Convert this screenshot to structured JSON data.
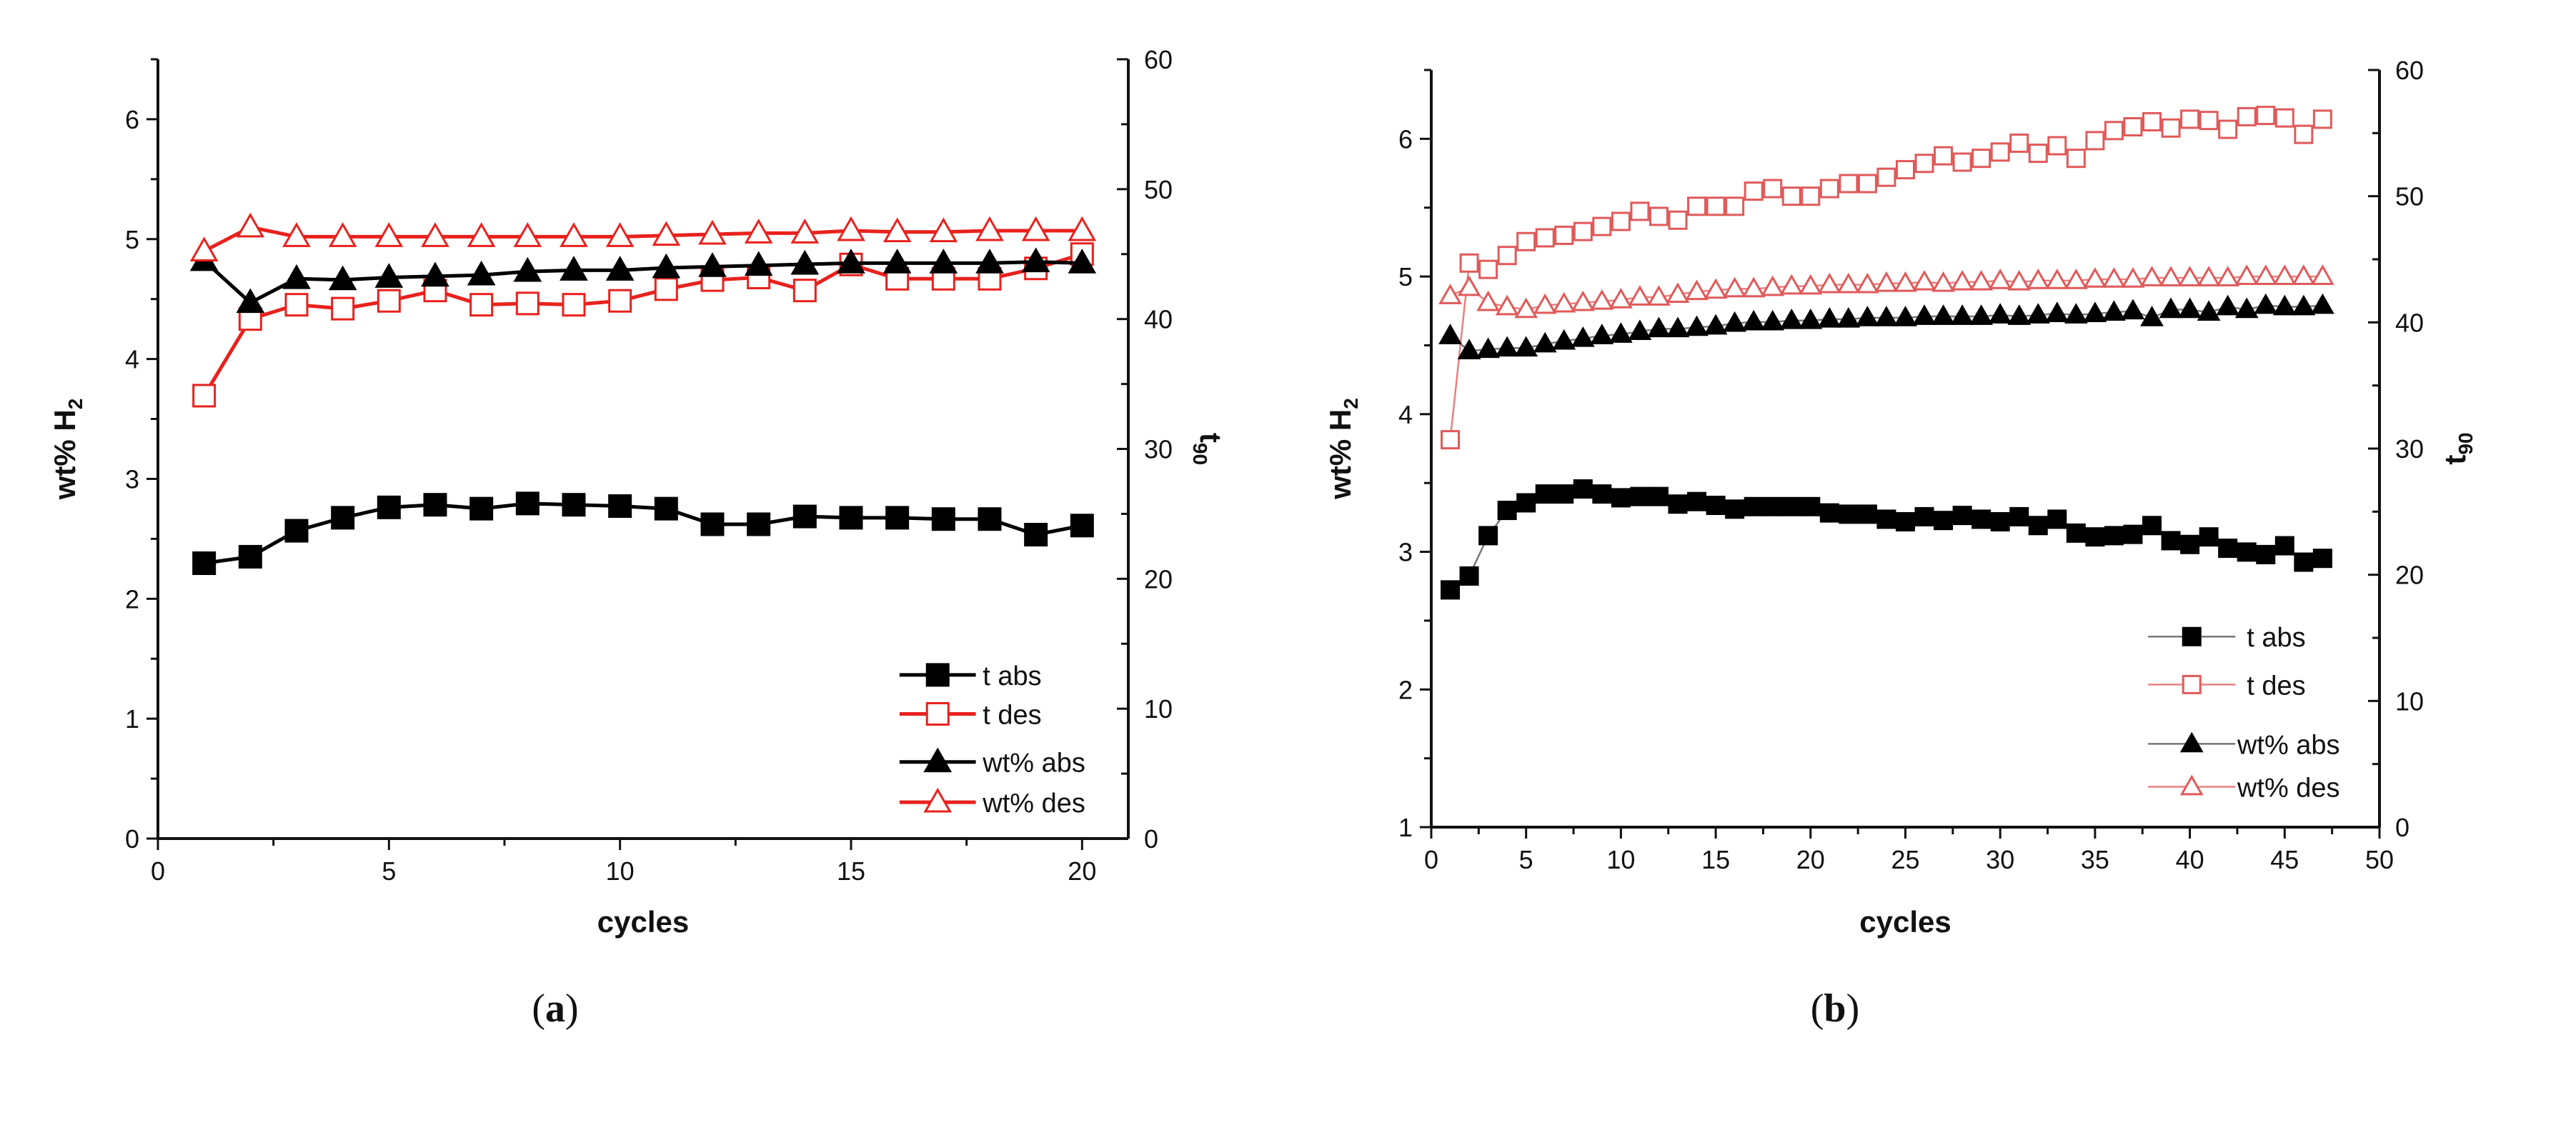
{
  "chart_data": [
    {
      "type": "line",
      "caption": "a",
      "xlabel": "cycles",
      "ylabel": "wt% H",
      "ylabel_sub": "2",
      "y2label": "t",
      "y2label_sub": "90",
      "xlim": [
        0,
        21
      ],
      "ylim": [
        0,
        6.5
      ],
      "y2lim": [
        0,
        60
      ],
      "xticks": [
        0,
        5,
        10,
        15,
        20
      ],
      "yticks": [
        0,
        1,
        2,
        3,
        4,
        5,
        6
      ],
      "y2ticks": [
        0,
        10,
        20,
        30,
        40,
        50,
        60
      ],
      "legend_position": "bottom-right",
      "x": [
        1,
        2,
        3,
        4,
        5,
        6,
        7,
        8,
        9,
        10,
        11,
        12,
        13,
        14,
        15,
        16,
        17,
        18,
        19,
        20
      ],
      "series": [
        {
          "name": "t abs",
          "axis": "right",
          "marker": "square-filled",
          "color": "#000000",
          "values": [
            21.2,
            21.7,
            23.7,
            24.7,
            25.5,
            25.7,
            25.4,
            25.8,
            25.7,
            25.6,
            25.4,
            24.2,
            24.2,
            24.8,
            24.7,
            24.7,
            24.6,
            24.6,
            23.4,
            24.1
          ]
        },
        {
          "name": "t des",
          "axis": "right",
          "marker": "square-open",
          "color": "#e8211d",
          "values": [
            34.1,
            40.0,
            41.1,
            40.8,
            41.4,
            42.2,
            41.1,
            41.2,
            41.1,
            41.4,
            42.3,
            43.0,
            43.2,
            42.2,
            44.2,
            43.1,
            43.1,
            43.1,
            43.9,
            45.0
          ]
        },
        {
          "name": "wt% abs",
          "axis": "left",
          "marker": "triangle-filled",
          "color": "#000000",
          "values": [
            4.82,
            4.47,
            4.67,
            4.66,
            4.68,
            4.69,
            4.7,
            4.73,
            4.74,
            4.74,
            4.76,
            4.77,
            4.78,
            4.79,
            4.8,
            4.8,
            4.8,
            4.8,
            4.81,
            4.8
          ]
        },
        {
          "name": "wt% des",
          "axis": "left",
          "marker": "triangle-open",
          "color": "#e8211d",
          "values": [
            4.9,
            5.1,
            5.02,
            5.02,
            5.02,
            5.02,
            5.02,
            5.02,
            5.02,
            5.02,
            5.03,
            5.04,
            5.05,
            5.05,
            5.07,
            5.06,
            5.06,
            5.07,
            5.07,
            5.07
          ]
        }
      ]
    },
    {
      "type": "scatter",
      "caption": "b",
      "xlabel": "cycles",
      "ylabel": "wt% H",
      "ylabel_sub": "2",
      "y2label": "t",
      "y2label_sub": "90",
      "xlim": [
        0,
        50
      ],
      "ylim": [
        1,
        6.5
      ],
      "y2lim": [
        0,
        60
      ],
      "xticks": [
        0,
        5,
        10,
        15,
        20,
        25,
        30,
        35,
        40,
        45,
        50
      ],
      "yticks": [
        1,
        2,
        3,
        4,
        5,
        6
      ],
      "y2ticks": [
        0,
        10,
        20,
        30,
        40,
        50,
        60
      ],
      "legend_position": "bottom-right",
      "x": [
        1,
        2,
        3,
        4,
        5,
        6,
        7,
        8,
        9,
        10,
        11,
        12,
        13,
        14,
        15,
        16,
        17,
        18,
        19,
        20,
        21,
        22,
        23,
        24,
        25,
        26,
        27,
        28,
        29,
        30,
        31,
        32,
        33,
        34,
        35,
        36,
        37,
        38,
        39,
        40,
        41,
        42,
        43,
        44,
        45,
        46,
        47
      ],
      "series": [
        {
          "name": "t abs",
          "axis": "right",
          "marker": "square-filled",
          "color": "#000000",
          "line_color": "#777777",
          "values": [
            18.8,
            19.9,
            23.1,
            25.1,
            25.7,
            26.4,
            26.4,
            26.8,
            26.4,
            26.1,
            26.2,
            26.2,
            25.6,
            25.8,
            25.5,
            25.2,
            25.4,
            25.4,
            25.4,
            25.4,
            24.9,
            24.8,
            24.8,
            24.4,
            24.2,
            24.6,
            24.3,
            24.7,
            24.4,
            24.2,
            24.6,
            23.9,
            24.4,
            23.3,
            23.0,
            23.1,
            23.2,
            23.9,
            22.7,
            22.4,
            23.0,
            22.1,
            21.8,
            21.6,
            22.3,
            21.0,
            21.3
          ]
        },
        {
          "name": "t des",
          "axis": "right",
          "marker": "square-open",
          "color": "#e05a5a",
          "line_color": "#e88080",
          "values": [
            30.7,
            44.7,
            44.2,
            45.3,
            46.4,
            46.7,
            46.9,
            47.2,
            47.6,
            48.0,
            48.8,
            48.4,
            48.1,
            49.2,
            49.2,
            49.2,
            50.4,
            50.6,
            50.0,
            50.0,
            50.6,
            51.0,
            51.0,
            51.5,
            52.1,
            52.6,
            53.2,
            52.7,
            53.0,
            53.5,
            54.2,
            53.4,
            54.0,
            53.0,
            54.4,
            55.2,
            55.5,
            55.9,
            55.4,
            56.1,
            56.0,
            55.3,
            56.3,
            56.4,
            56.2,
            54.9,
            56.1
          ]
        },
        {
          "name": "wt% abs",
          "axis": "left",
          "marker": "triangle-filled",
          "color": "#000000",
          "line_color": "#777777",
          "values": [
            4.57,
            4.46,
            4.47,
            4.48,
            4.48,
            4.51,
            4.53,
            4.55,
            4.57,
            4.58,
            4.6,
            4.62,
            4.62,
            4.63,
            4.64,
            4.66,
            4.67,
            4.67,
            4.68,
            4.68,
            4.69,
            4.69,
            4.7,
            4.7,
            4.7,
            4.71,
            4.71,
            4.71,
            4.71,
            4.72,
            4.71,
            4.72,
            4.73,
            4.72,
            4.73,
            4.74,
            4.75,
            4.7,
            4.76,
            4.76,
            4.74,
            4.78,
            4.76,
            4.79,
            4.78,
            4.78,
            4.79
          ]
        },
        {
          "name": "wt% des",
          "axis": "left",
          "marker": "triangle-open",
          "color": "#e05a5a",
          "line_color": "#e88080",
          "values": [
            4.86,
            4.92,
            4.81,
            4.78,
            4.76,
            4.79,
            4.8,
            4.81,
            4.82,
            4.83,
            4.85,
            4.85,
            4.87,
            4.89,
            4.9,
            4.91,
            4.91,
            4.92,
            4.93,
            4.93,
            4.94,
            4.94,
            4.94,
            4.95,
            4.95,
            4.96,
            4.95,
            4.96,
            4.96,
            4.97,
            4.96,
            4.97,
            4.97,
            4.97,
            4.98,
            4.98,
            4.98,
            4.99,
            4.99,
            4.99,
            4.99,
            4.99,
            5.0,
            5.0,
            5.0,
            5.0,
            5.0
          ]
        }
      ]
    }
  ]
}
